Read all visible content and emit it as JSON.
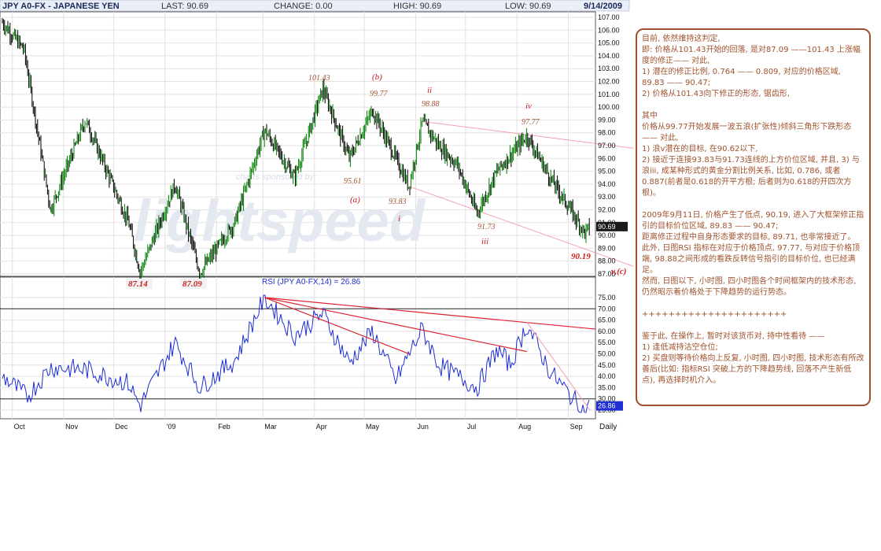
{
  "header": {
    "symbol": "JPY A0-FX - JAPANESE YEN",
    "last": "LAST: 90.69",
    "change": "CHANGE: 0.00",
    "high": "HIGH: 90.69",
    "low": "LOW: 90.69",
    "date": "9/14/2009"
  },
  "watermark": {
    "small": "charts sponsored by:",
    "big": "lightspeed"
  },
  "annotations": {
    "p101_43": "101.43",
    "b": "(b)",
    "p99_77a": "99.77",
    "ii": "ii",
    "p98_88": "98.88",
    "iv": "iv",
    "p97_77": "97.77",
    "p95_61": "95.61",
    "a": "(a)",
    "p93_83": "93.83",
    "i": "i",
    "p91_73": "91.73",
    "iii": "iii",
    "p90_19": "90.19",
    "vc": "v,(c)",
    "p87_14": "87.14",
    "p87_09": "87.09"
  },
  "rsi_label": "RSI (JPY A0-FX,14) = 26.86",
  "daily_label": "Daily",
  "colors": {
    "up": "#008000",
    "down": "#000000",
    "rsi": "#1f2fd0",
    "trend": "#dd2233",
    "channel": "#f2a0b0",
    "note": "#a0522d"
  },
  "chart_data": [
    {
      "type": "line",
      "name": "price",
      "ylim": [
        87,
        107
      ],
      "yticks": [
        "107.00",
        "106.00",
        "105.00",
        "104.00",
        "103.00",
        "102.00",
        "101.00",
        "100.00",
        "99.00",
        "98.00",
        "97.00",
        "96.00",
        "95.00",
        "94.00",
        "93.00",
        "92.00",
        "91.00",
        "90.00",
        "89.00",
        "88.00",
        "87.00"
      ],
      "last_value_label": "90.69",
      "xticks": [
        "Oct",
        "Nov",
        "Dec",
        "'09",
        "Feb",
        "Mar",
        "Apr",
        "May",
        "Jun",
        "Jul",
        "Aug",
        "Sep"
      ],
      "x": [
        "2008-09-25",
        "2008-10-08",
        "2008-10-24",
        "2008-11-14",
        "2008-12-10",
        "2008-12-17",
        "2009-01-07",
        "2009-01-22",
        "2009-02-12",
        "2009-03-02",
        "2009-03-20",
        "2009-04-06",
        "2009-04-22",
        "2009-05-06",
        "2009-05-28",
        "2009-06-05",
        "2009-06-15",
        "2009-06-26",
        "2009-07-08",
        "2009-07-20",
        "2009-08-07",
        "2009-08-21",
        "2009-09-11",
        "2009-09-14"
      ],
      "values": [
        106.6,
        104.5,
        92.0,
        99.0,
        91.0,
        87.14,
        94.0,
        87.09,
        91.0,
        98.2,
        94.5,
        101.43,
        96.0,
        99.77,
        93.83,
        98.88,
        97.0,
        95.5,
        91.73,
        95.0,
        97.77,
        94.5,
        90.19,
        90.69
      ]
    },
    {
      "type": "line",
      "name": "RSI (JPY A0-FX,14)",
      "ylim": [
        25,
        75
      ],
      "yticks": [
        "75.00",
        "70.00",
        "65.00",
        "60.00",
        "55.00",
        "50.00",
        "45.00",
        "40.00",
        "35.00",
        "30.00",
        "25.00"
      ],
      "last_value_label": "26.86",
      "x": [
        "2008-09-25",
        "2008-10-10",
        "2008-10-24",
        "2008-11-14",
        "2008-12-10",
        "2008-12-17",
        "2009-01-07",
        "2009-01-22",
        "2009-02-12",
        "2009-03-02",
        "2009-03-20",
        "2009-04-06",
        "2009-04-22",
        "2009-05-06",
        "2009-05-20",
        "2009-05-28",
        "2009-06-05",
        "2009-06-15",
        "2009-07-08",
        "2009-07-20",
        "2009-07-28",
        "2009-08-07",
        "2009-08-21",
        "2009-09-04",
        "2009-09-11",
        "2009-09-14"
      ],
      "values": [
        40,
        31,
        44,
        43,
        37,
        27,
        55,
        35,
        47,
        75,
        58,
        68,
        46,
        60,
        38,
        50,
        61,
        45,
        35,
        52,
        45,
        63,
        42,
        30,
        24,
        26.86
      ]
    }
  ],
  "note": {
    "paragraphs": [
      "目前, 依然维持这判定,\n即: 价格从101.43开始的回落, 是对87.09 ——101.43 上涨幅度的修正—— 对此,\n1) 潜在的修正比例, 0.764 —— 0.809, 对应的价格区域, 89.83 —— 90.47;\n2) 价格从101.43向下修正的形态, 锯齿形,",
      "其中\n价格从99.77开始发展一波五浪(扩张性)倾斜三角形下跌形态—— 对此,\n1) 浪v潜在的目标, 在90.62以下,\n2) 接近于连接93.83与91.73连线的上方价位区域, 并且, 3) 与浪iii, 成某种形式的黄金分割比例关系, 比如, 0.786, 或者0.887(前者是0.618的开平方根; 后者则为0.618的开四次方根)。",
      "2009年9月11日, 价格产生了低点, 90.19, 进入了大框架修正指引的目标价位区域, 89.83 —— 90.47;\n距离修正过程中自身形态要求的目标, 89.71, 也非常接近了。\n此外, 日图RSI 指标在对应于价格顶点, 97.77, 与对应于价格顶端, 98.88之间形成的看跌反转信号指引的目标价位, 也已经满足。\n然而, 日图以下, 小时图, 四小时图各个时间框架内的技术形态, 仍然昭示着价格处于下降趋势的运行势态。",
      "++++++++++++++++++++++",
      "鉴于此, 在操作上, 暂时对该货币对, 持中性看待 ——\n1) 逢低减持沽空仓位;\n2) 买盘则等待价格向上反复, 小时图, 四小时图, 技术形态有所改善后(比如: 指标RSI 突破上方的下降趋势线, 回落不产生新低点), 再选择时机介入。"
    ]
  }
}
